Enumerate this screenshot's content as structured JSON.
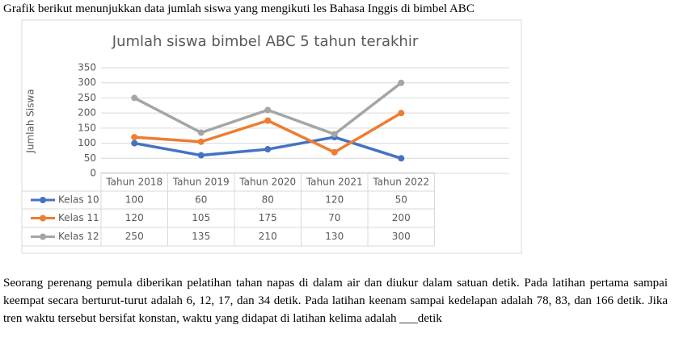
{
  "intro": "Grafik berikut menunjukkan data jumlah siswa yang mengikuti les Bahasa Inggis di bimbel ABC",
  "chart_data": {
    "type": "line",
    "title": "Jumlah siswa bimbel ABC 5 tahun terakhir",
    "y_label": "Jumlah Siswa",
    "categories": [
      "Tahun 2018",
      "Tahun 2019",
      "Tahun 2020",
      "Tahun 2021",
      "Tahun 2022"
    ],
    "series": [
      {
        "name": "Kelas 10",
        "color": "#4472c4",
        "values": [
          100,
          60,
          80,
          120,
          50
        ]
      },
      {
        "name": "Kelas 11",
        "color": "#ed7d31",
        "values": [
          120,
          105,
          175,
          70,
          200
        ]
      },
      {
        "name": "Kelas 12",
        "color": "#a5a5a5",
        "values": [
          250,
          135,
          210,
          130,
          300
        ]
      }
    ],
    "ylim": [
      0,
      350
    ],
    "yticks": [
      0,
      50,
      100,
      150,
      200,
      250,
      300,
      350
    ],
    "grid": true,
    "data_table": true
  },
  "paragraph": "Seorang perenang pemula diberikan pelatihan tahan napas di dalam air dan diukur dalam satuan detik. Pada latihan pertama sampai keempat secara berturut-turut adalah 6, 12, 17, dan 34 detik. Pada latihan keenam sampai kedelapan adalah 78, 83, dan 166 detik. Jika tren waktu tersebut bersifat konstan, waktu yang didapat di latihan kelima adalah ___detik"
}
